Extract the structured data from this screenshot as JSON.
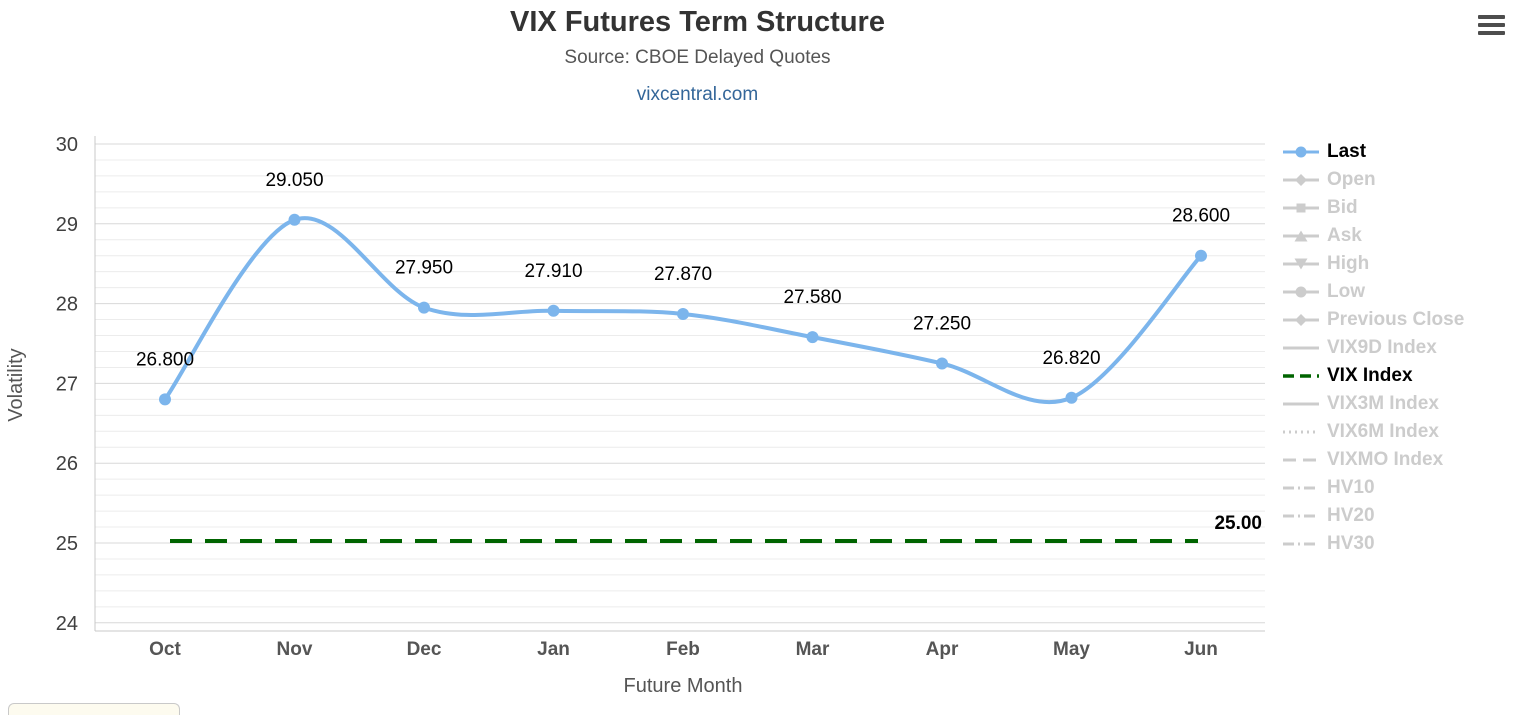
{
  "page": {
    "link": "vixcentral.com",
    "icons": {
      "menu": "hamburger-icon"
    },
    "colors": {
      "accent_blue": "#7cb5ec",
      "accent_green": "#006400",
      "disabled": "#cccccc",
      "link": "#336699",
      "active_text": "#000000"
    }
  },
  "chart_data": {
    "type": "line",
    "title": "VIX Futures Term Structure",
    "subtitle": "Source: CBOE Delayed Quotes",
    "xlabel": "Future Month",
    "ylabel": "Volatility",
    "categories": [
      "Oct",
      "Nov",
      "Dec",
      "Jan",
      "Feb",
      "Mar",
      "Apr",
      "May",
      "Jun"
    ],
    "y_ticks": [
      30,
      29,
      28,
      27,
      26,
      25,
      24
    ],
    "ylim": [
      24,
      30
    ],
    "grid": true,
    "legend_position": "right",
    "series": [
      {
        "name": "Last",
        "type": "line",
        "color": "#7cb5ec",
        "values": [
          26.8,
          29.05,
          27.95,
          27.91,
          27.87,
          27.58,
          27.25,
          26.82,
          28.6
        ],
        "labels": [
          "26.800",
          "29.050",
          "27.950",
          "27.910",
          "27.870",
          "27.580",
          "27.250",
          "26.820",
          "28.600"
        ]
      },
      {
        "name": "VIX Index",
        "type": "hline",
        "color": "#006400",
        "value": 25.0,
        "label": "25.00"
      }
    ],
    "legend": [
      {
        "label": "Last",
        "marker": "line-circle",
        "color": "#7cb5ec",
        "active": true
      },
      {
        "label": "Open",
        "marker": "line-diamond",
        "color": "#cccccc",
        "active": false
      },
      {
        "label": "Bid",
        "marker": "line-square",
        "color": "#cccccc",
        "active": false
      },
      {
        "label": "Ask",
        "marker": "line-triangle",
        "color": "#cccccc",
        "active": false
      },
      {
        "label": "High",
        "marker": "line-triangle-down",
        "color": "#cccccc",
        "active": false
      },
      {
        "label": "Low",
        "marker": "line-circle",
        "color": "#cccccc",
        "active": false
      },
      {
        "label": "Previous Close",
        "marker": "line-diamond",
        "color": "#cccccc",
        "active": false
      },
      {
        "label": "VIX9D Index",
        "marker": "line",
        "color": "#cccccc",
        "active": false
      },
      {
        "label": "VIX Index",
        "marker": "dash",
        "color": "#006400",
        "active": true
      },
      {
        "label": "VIX3M Index",
        "marker": "line",
        "color": "#cccccc",
        "active": false
      },
      {
        "label": "VIX6M Index",
        "marker": "dot",
        "color": "#cccccc",
        "active": false
      },
      {
        "label": "VIXMO Index",
        "marker": "longdash",
        "color": "#cccccc",
        "active": false
      },
      {
        "label": "HV10",
        "marker": "dashdot",
        "color": "#cccccc",
        "active": false
      },
      {
        "label": "HV20",
        "marker": "dashdot",
        "color": "#cccccc",
        "active": false
      },
      {
        "label": "HV30",
        "marker": "dashdot",
        "color": "#cccccc",
        "active": false
      }
    ]
  }
}
